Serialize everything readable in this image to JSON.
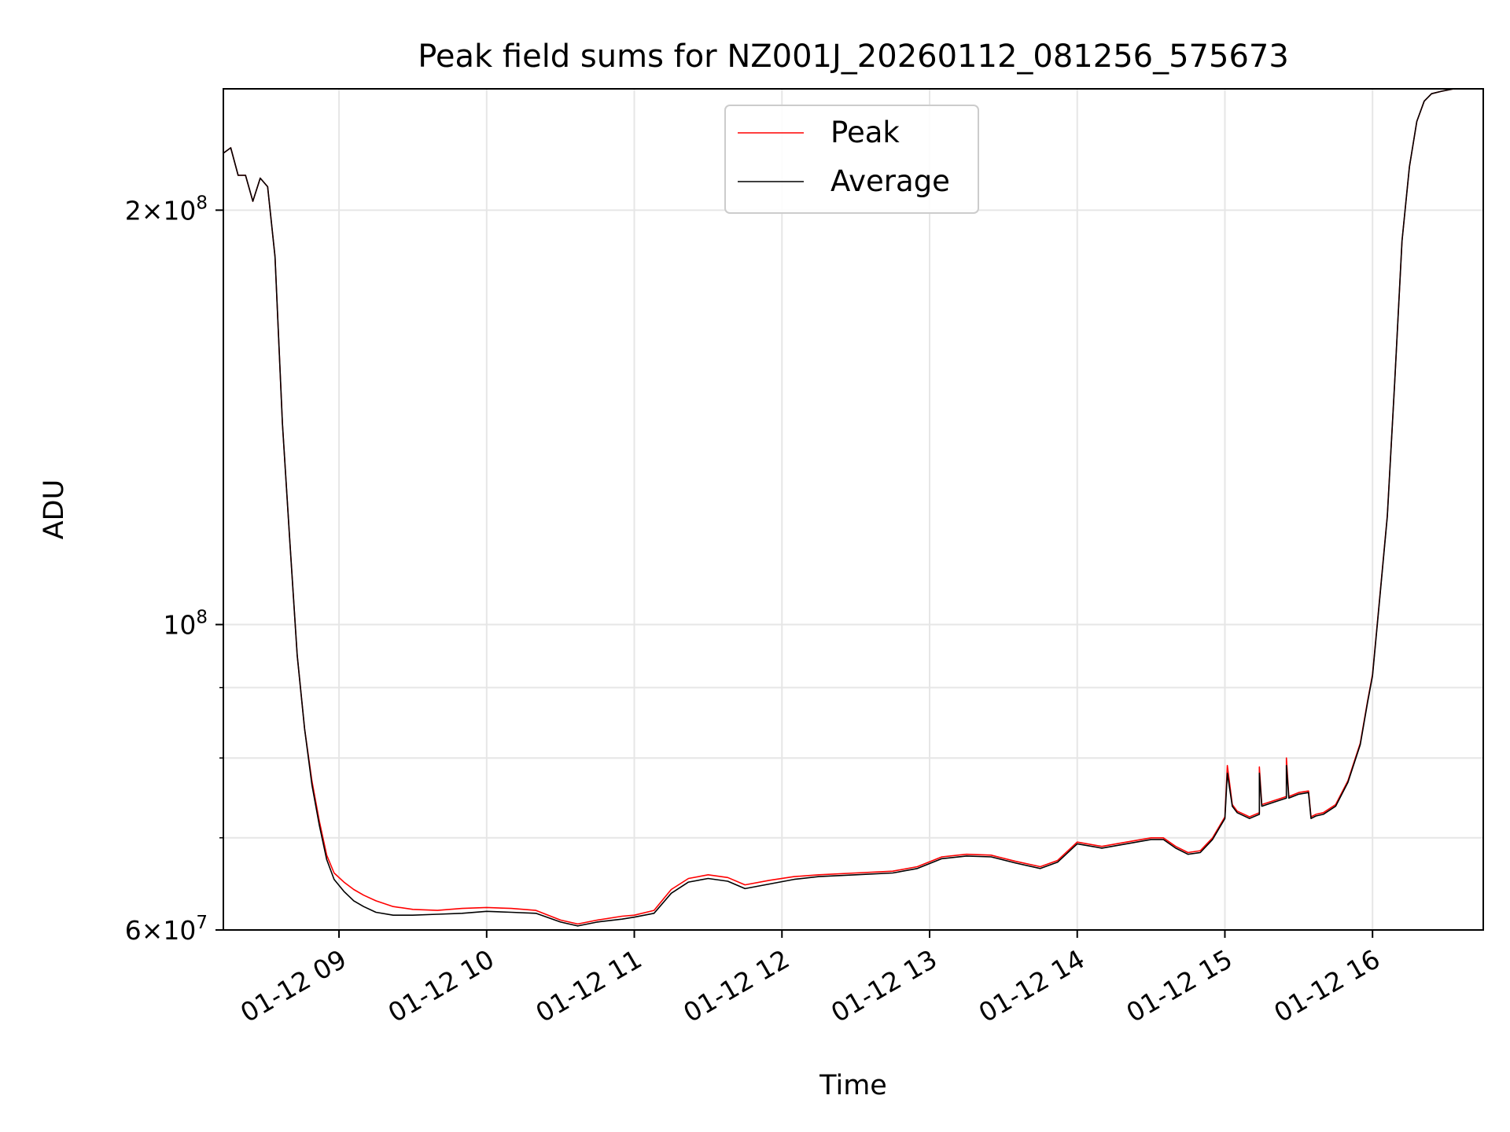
{
  "chart_data": {
    "type": "line",
    "title": "Peak field sums for NZ001J_20260112_081256_575673",
    "xlabel": "Time",
    "ylabel": "ADU",
    "y_scale": "log",
    "grid": true,
    "legend_position": "upper-center",
    "xlim": [
      "2026-01-12 08:13",
      "2026-01-12 16:45"
    ],
    "ylim": [
      60000000,
      245000000
    ],
    "x_ticks": [
      {
        "value": "2026-01-12 09:00",
        "label": "01-12 09"
      },
      {
        "value": "2026-01-12 10:00",
        "label": "01-12 10"
      },
      {
        "value": "2026-01-12 11:00",
        "label": "01-12 11"
      },
      {
        "value": "2026-01-12 12:00",
        "label": "01-12 12"
      },
      {
        "value": "2026-01-12 13:00",
        "label": "01-12 13"
      },
      {
        "value": "2026-01-12 14:00",
        "label": "01-12 14"
      },
      {
        "value": "2026-01-12 15:00",
        "label": "01-12 15"
      },
      {
        "value": "2026-01-12 16:00",
        "label": "01-12 16"
      }
    ],
    "y_ticks": [
      {
        "value": 60000000,
        "base": "6×10",
        "exp": "7"
      },
      {
        "value": 100000000,
        "base": "10",
        "exp": "8"
      },
      {
        "value": 200000000,
        "base": "2×10",
        "exp": "8"
      }
    ],
    "y_minor_gridlines": [
      70000000,
      80000000,
      90000000
    ],
    "series": [
      {
        "name": "Peak",
        "color": "#ff0000",
        "x": [
          "2026-01-12 08:13",
          "2026-01-12 08:16",
          "2026-01-12 08:19",
          "2026-01-12 08:22",
          "2026-01-12 08:25",
          "2026-01-12 08:28",
          "2026-01-12 08:31",
          "2026-01-12 08:34",
          "2026-01-12 08:37",
          "2026-01-12 08:40",
          "2026-01-12 08:43",
          "2026-01-12 08:46",
          "2026-01-12 08:49",
          "2026-01-12 08:52",
          "2026-01-12 08:55",
          "2026-01-12 08:58",
          "2026-01-12 09:02",
          "2026-01-12 09:06",
          "2026-01-12 09:10",
          "2026-01-12 09:15",
          "2026-01-12 09:22",
          "2026-01-12 09:30",
          "2026-01-12 09:40",
          "2026-01-12 09:50",
          "2026-01-12 10:00",
          "2026-01-12 10:10",
          "2026-01-12 10:20",
          "2026-01-12 10:30",
          "2026-01-12 10:37",
          "2026-01-12 10:45",
          "2026-01-12 10:55",
          "2026-01-12 11:00",
          "2026-01-12 11:08",
          "2026-01-12 11:15",
          "2026-01-12 11:22",
          "2026-01-12 11:30",
          "2026-01-12 11:38",
          "2026-01-12 11:45",
          "2026-01-12 11:55",
          "2026-01-12 12:05",
          "2026-01-12 12:15",
          "2026-01-12 12:30",
          "2026-01-12 12:45",
          "2026-01-12 12:55",
          "2026-01-12 13:05",
          "2026-01-12 13:15",
          "2026-01-12 13:25",
          "2026-01-12 13:35",
          "2026-01-12 13:45",
          "2026-01-12 13:52",
          "2026-01-12 14:00",
          "2026-01-12 14:10",
          "2026-01-12 14:20",
          "2026-01-12 14:30",
          "2026-01-12 14:35",
          "2026-01-12 14:40",
          "2026-01-12 14:45",
          "2026-01-12 14:50",
          "2026-01-12 14:55",
          "2026-01-12 15:00",
          "2026-01-12 15:01",
          "2026-01-12 15:03",
          "2026-01-12 15:05",
          "2026-01-12 15:10",
          "2026-01-12 15:14",
          "2026-01-12 15:14",
          "2026-01-12 15:15",
          "2026-01-12 15:20",
          "2026-01-12 15:25",
          "2026-01-12 15:25",
          "2026-01-12 15:26",
          "2026-01-12 15:30",
          "2026-01-12 15:34",
          "2026-01-12 15:35",
          "2026-01-12 15:37",
          "2026-01-12 15:40",
          "2026-01-12 15:45",
          "2026-01-12 15:50",
          "2026-01-12 15:55",
          "2026-01-12 15:58",
          "2026-01-12 16:00",
          "2026-01-12 16:03",
          "2026-01-12 16:06",
          "2026-01-12 16:09",
          "2026-01-12 16:12",
          "2026-01-12 16:15",
          "2026-01-12 16:18",
          "2026-01-12 16:21",
          "2026-01-12 16:24",
          "2026-01-12 16:28",
          "2026-01-12 16:33",
          "2026-01-12 16:38",
          "2026-01-12 16:45"
        ],
        "y": [
          220000000,
          222000000,
          212000000,
          212000000,
          203000000,
          211000000,
          208000000,
          185000000,
          140000000,
          115000000,
          95000000,
          84000000,
          77000000,
          72000000,
          68000000,
          66000000,
          65000000,
          64200000,
          63600000,
          63000000,
          62400000,
          62100000,
          62000000,
          62200000,
          62300000,
          62200000,
          62000000,
          61000000,
          60600000,
          61000000,
          61400000,
          61500000,
          62000000,
          64200000,
          65400000,
          65800000,
          65500000,
          64700000,
          65200000,
          65600000,
          65800000,
          66000000,
          66200000,
          66700000,
          67800000,
          68100000,
          68000000,
          67300000,
          66700000,
          67400000,
          69500000,
          69000000,
          69500000,
          70000000,
          70000000,
          69000000,
          68300000,
          68500000,
          70000000,
          72500000,
          79000000,
          74000000,
          73200000,
          72500000,
          73000000,
          78800000,
          74000000,
          74500000,
          75000000,
          80000000,
          75000000,
          75500000,
          75700000,
          72500000,
          72800000,
          73000000,
          74000000,
          77000000,
          82000000,
          88000000,
          92000000,
          105000000,
          120000000,
          150000000,
          190000000,
          215000000,
          232000000,
          240000000,
          243000000,
          244000000,
          245000000,
          245000000,
          245000000
        ]
      },
      {
        "name": "Average",
        "color": "#000000",
        "x": [
          "2026-01-12 08:13",
          "2026-01-12 08:16",
          "2026-01-12 08:19",
          "2026-01-12 08:22",
          "2026-01-12 08:25",
          "2026-01-12 08:28",
          "2026-01-12 08:31",
          "2026-01-12 08:34",
          "2026-01-12 08:37",
          "2026-01-12 08:40",
          "2026-01-12 08:43",
          "2026-01-12 08:46",
          "2026-01-12 08:49",
          "2026-01-12 08:52",
          "2026-01-12 08:55",
          "2026-01-12 08:58",
          "2026-01-12 09:02",
          "2026-01-12 09:06",
          "2026-01-12 09:10",
          "2026-01-12 09:15",
          "2026-01-12 09:22",
          "2026-01-12 09:30",
          "2026-01-12 09:40",
          "2026-01-12 09:50",
          "2026-01-12 10:00",
          "2026-01-12 10:10",
          "2026-01-12 10:20",
          "2026-01-12 10:30",
          "2026-01-12 10:37",
          "2026-01-12 10:45",
          "2026-01-12 10:55",
          "2026-01-12 11:00",
          "2026-01-12 11:08",
          "2026-01-12 11:15",
          "2026-01-12 11:22",
          "2026-01-12 11:30",
          "2026-01-12 11:38",
          "2026-01-12 11:45",
          "2026-01-12 11:55",
          "2026-01-12 12:05",
          "2026-01-12 12:15",
          "2026-01-12 12:30",
          "2026-01-12 12:45",
          "2026-01-12 12:55",
          "2026-01-12 13:05",
          "2026-01-12 13:15",
          "2026-01-12 13:25",
          "2026-01-12 13:35",
          "2026-01-12 13:45",
          "2026-01-12 13:52",
          "2026-01-12 14:00",
          "2026-01-12 14:10",
          "2026-01-12 14:20",
          "2026-01-12 14:30",
          "2026-01-12 14:35",
          "2026-01-12 14:40",
          "2026-01-12 14:45",
          "2026-01-12 14:50",
          "2026-01-12 14:55",
          "2026-01-12 15:00",
          "2026-01-12 15:01",
          "2026-01-12 15:03",
          "2026-01-12 15:05",
          "2026-01-12 15:10",
          "2026-01-12 15:14",
          "2026-01-12 15:14",
          "2026-01-12 15:15",
          "2026-01-12 15:20",
          "2026-01-12 15:25",
          "2026-01-12 15:25",
          "2026-01-12 15:26",
          "2026-01-12 15:30",
          "2026-01-12 15:34",
          "2026-01-12 15:35",
          "2026-01-12 15:37",
          "2026-01-12 15:40",
          "2026-01-12 15:45",
          "2026-01-12 15:50",
          "2026-01-12 15:55",
          "2026-01-12 15:58",
          "2026-01-12 16:00",
          "2026-01-12 16:03",
          "2026-01-12 16:06",
          "2026-01-12 16:09",
          "2026-01-12 16:12",
          "2026-01-12 16:15",
          "2026-01-12 16:18",
          "2026-01-12 16:21",
          "2026-01-12 16:24",
          "2026-01-12 16:28",
          "2026-01-12 16:33",
          "2026-01-12 16:38",
          "2026-01-12 16:45"
        ],
        "y": [
          220000000,
          222000000,
          212000000,
          212000000,
          203000000,
          211000000,
          208000000,
          185000000,
          140000000,
          115000000,
          95000000,
          84000000,
          76500000,
          71500000,
          67500000,
          65300000,
          64000000,
          63000000,
          62400000,
          61800000,
          61500000,
          61500000,
          61600000,
          61700000,
          61900000,
          61800000,
          61700000,
          60800000,
          60400000,
          60800000,
          61100000,
          61300000,
          61700000,
          63800000,
          65000000,
          65400000,
          65100000,
          64300000,
          64800000,
          65300000,
          65600000,
          65800000,
          66000000,
          66500000,
          67600000,
          67900000,
          67800000,
          67100000,
          66500000,
          67200000,
          69300000,
          68800000,
          69300000,
          69800000,
          69800000,
          68800000,
          68100000,
          68300000,
          69800000,
          72300000,
          78000000,
          73800000,
          73000000,
          72300000,
          72800000,
          78000000,
          73800000,
          74300000,
          74800000,
          79000000,
          74800000,
          75300000,
          75500000,
          72300000,
          72600000,
          72800000,
          73800000,
          76800000,
          81800000,
          87800000,
          91800000,
          104800000,
          119800000,
          150000000,
          190000000,
          215000000,
          232000000,
          240000000,
          243000000,
          244000000,
          245000000,
          245000000,
          245000000
        ]
      }
    ]
  }
}
